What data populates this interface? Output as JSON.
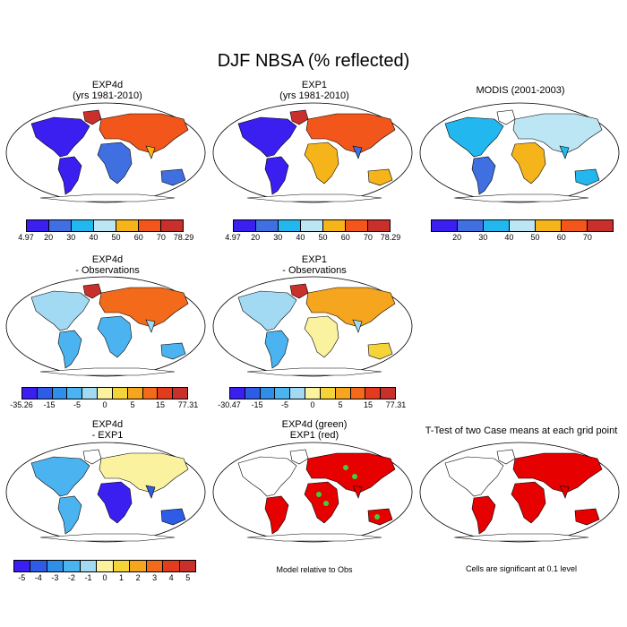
{
  "main_title": "DJF NBSA (% reflected)",
  "panels": [
    {
      "line1": "EXP4d",
      "line2": "(yrs 1981-2010)"
    },
    {
      "line1": "EXP1",
      "line2": "(yrs 1981-2010)"
    },
    {
      "line1": "MODIS (2001-2003)",
      "line2": ""
    },
    {
      "line1": "EXP4d",
      "line2": "- Observations"
    },
    {
      "line1": "EXP1",
      "line2": "- Observations"
    },
    {
      "line1": "EXP4d",
      "line2": "- EXP1"
    },
    {
      "line1": "EXP4d (green)",
      "line2": "EXP1 (red)"
    },
    {
      "line1": "T-Test of two Case means at each grid point",
      "line2": ""
    }
  ],
  "colorbars": {
    "abs": [
      "#3a1ff0",
      "#3f6fe0",
      "#22b7ee",
      "#bde6f5",
      "#f5b41a",
      "#f2561a",
      "#c9302c"
    ],
    "diff": [
      "#3a1ff0",
      "#2f5ce6",
      "#2f8fe8",
      "#4bb4f0",
      "#a3daf3",
      "#fbf2a0",
      "#f5d43a",
      "#f5a51e",
      "#f26a1a",
      "#e23b1e",
      "#c9302c"
    ],
    "ticks_exp4d": [
      "4.97",
      "20",
      "30",
      "40",
      "50",
      "60",
      "70",
      "78.29"
    ],
    "ticks_exp1": [
      "4.97",
      "20",
      "30",
      "40",
      "50",
      "60",
      "70",
      "78.29"
    ],
    "ticks_modis": [
      "20",
      "30",
      "40",
      "50",
      "60",
      "70"
    ],
    "ticks_diff_exp4d": [
      "-35.26",
      "-15",
      "-5",
      "0",
      "5",
      "15",
      "77.31"
    ],
    "ticks_diff_exp1": [
      "-30.47",
      "-15",
      "-5",
      "0",
      "5",
      "15",
      "77.31"
    ],
    "ticks_exp4d_exp1": [
      "-5",
      "-4",
      "-3",
      "-2",
      "-1",
      "0",
      "1",
      "2",
      "3",
      "4",
      "5"
    ]
  },
  "notes": {
    "model_rel": "Model relative to Obs",
    "significant": "Cells are significant at 0.1 level"
  }
}
